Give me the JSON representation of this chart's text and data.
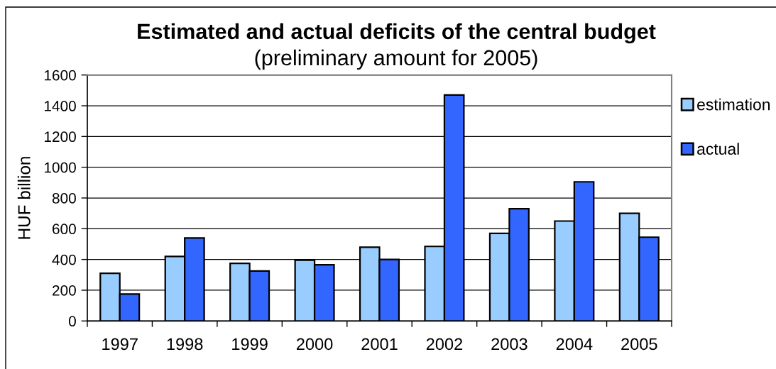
{
  "chart_data": {
    "type": "bar",
    "title": "Estimated and actual deficits of the central budget",
    "subtitle": "(preliminary amount for 2005)",
    "ylabel": "HUF billion",
    "categories": [
      "1997",
      "1998",
      "1999",
      "2000",
      "2001",
      "2002",
      "2003",
      "2004",
      "2005"
    ],
    "series": [
      {
        "name": "estimation",
        "color": "#99ccff",
        "values": [
          310,
          420,
          375,
          395,
          480,
          485,
          570,
          650,
          700
        ]
      },
      {
        "name": "actual",
        "color": "#3366ff",
        "values": [
          175,
          540,
          325,
          365,
          400,
          1470,
          730,
          905,
          545
        ]
      }
    ],
    "ylim": [
      0,
      1600
    ],
    "yticks": [
      0,
      200,
      400,
      600,
      800,
      1000,
      1200,
      1400,
      1600
    ],
    "grid": "y",
    "legend": "right"
  }
}
